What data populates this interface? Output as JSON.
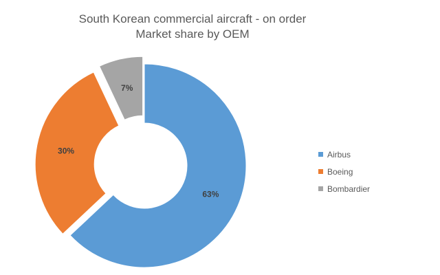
{
  "chart_data": {
    "type": "pie",
    "variant": "donut",
    "title": "South Korean commercial aircraft - on order",
    "subtitle": "Market share by OEM",
    "categories": [
      "Airbus",
      "Boeing",
      "Bombardier"
    ],
    "values": [
      63,
      30,
      7
    ],
    "labels": [
      "63%",
      "30%",
      "7%"
    ],
    "colors": [
      "#5B9BD5",
      "#ED7D31",
      "#A5A5A5"
    ],
    "exploded": [
      "Boeing",
      "Bombardier"
    ],
    "legend_position": "right"
  }
}
